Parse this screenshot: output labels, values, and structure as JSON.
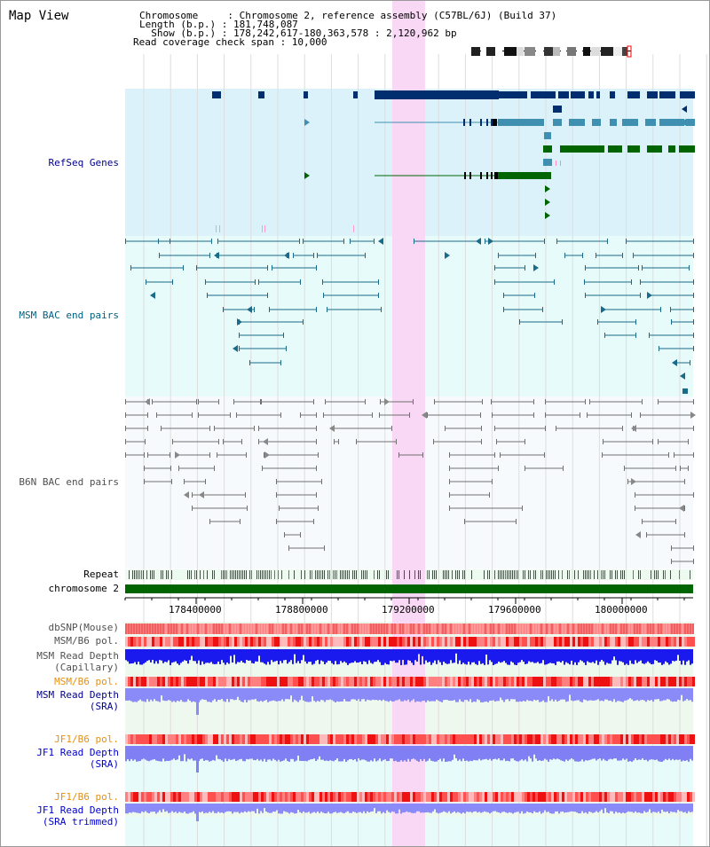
{
  "title": "Map View",
  "header": {
    "line1": "Chromosome     : Chromosome 2, reference assembly (C57BL/6J) (Build 37)",
    "line2": "Length (b.p.) : 181,748,087",
    "line3": "  Show (b.p.) : 178,242,617-180,363,578 : 2,120,962 bp",
    "line4": "Read coverage check span : 10,000"
  },
  "tracks": {
    "refseq": "RefSeq Genes",
    "msm_bac": "MSM BAC end pairs",
    "b6n_bac": "B6N BAC end pairs",
    "repeat": "Repeat",
    "chromosome": "chromosome 2",
    "dbsnp": "dbSNP(Mouse)",
    "msm_b6_pol_1": "MSM/B6 pol.",
    "msm_read_depth_cap": "MSM Read Depth\n(Capillary)",
    "msm_b6_pol_2": "MSM/B6 pol.",
    "msm_read_depth_sra": "MSM Read Depth\n(SRA)",
    "jf1_b6_pol_1": "JF1/B6 pol.",
    "jf1_read_depth_sra": "JF1 Read Depth\n(SRA)",
    "jf1_b6_pol_2": "JF1/B6 pol.",
    "jf1_read_depth_trim": "JF1 Read Depth\n(SRA trimmed)"
  },
  "axis": {
    "ticks": [
      "178400000",
      "178800000",
      "179200000",
      "179600000",
      "180000000"
    ]
  },
  "colors": {
    "refseq_bg": "#dcf2fb",
    "bac_bg": "#e8fbfb",
    "highlight": "#f8d8f4",
    "chrom_green": "#006400",
    "gene_dark": "#002e6e",
    "gene_mid": "#3f8fb0",
    "gene_green": "#006400",
    "msm_line": "#1a6a8a",
    "b6n_line": "#505050",
    "pol_red": "#ee3333",
    "depth_blue": "#2222ee",
    "depth_light": "#8888ff"
  }
}
